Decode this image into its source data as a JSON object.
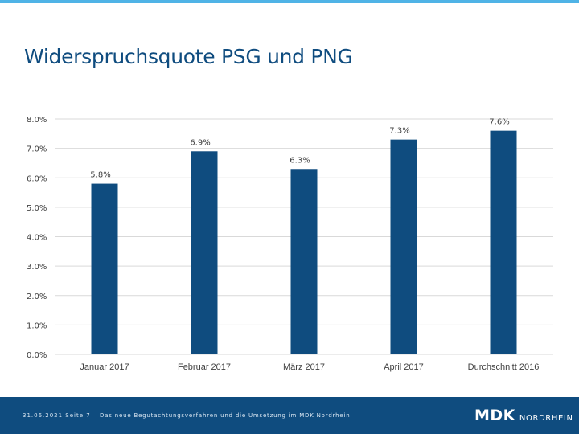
{
  "slide": {
    "title": "Widerspruchsquote PSG und PNG"
  },
  "footer": {
    "date_page": "31.06.2021  Seite 7",
    "text": "Das neue Begutachtungsverfahren und die Umsetzung im MDK Nordrhein",
    "logo_main": "MDK",
    "logo_sub": "NORDRHEIN"
  },
  "colors": {
    "bar": "#0f4c7f",
    "grid": "#d9d9d9",
    "brand": "#0f4c7f",
    "accent": "#4fb3e6"
  },
  "chart_data": {
    "type": "bar",
    "title": "",
    "xlabel": "",
    "ylabel": "",
    "categories": [
      "Januar 2017",
      "Februar 2017",
      "März 2017",
      "April 2017",
      "Durchschnitt 2016"
    ],
    "values": [
      5.8,
      6.9,
      6.3,
      7.3,
      7.6
    ],
    "value_labels": [
      "5.8%",
      "6.9%",
      "6.3%",
      "7.3%",
      "7.6%"
    ],
    "ylim": [
      0,
      8
    ],
    "yticks": [
      0,
      1,
      2,
      3,
      4,
      5,
      6,
      7,
      8
    ],
    "ytick_labels": [
      "0.0%",
      "1.0%",
      "2.0%",
      "3.0%",
      "4.0%",
      "5.0%",
      "6.0%",
      "7.0%",
      "8.0%"
    ],
    "grid": true,
    "legend": "none"
  }
}
